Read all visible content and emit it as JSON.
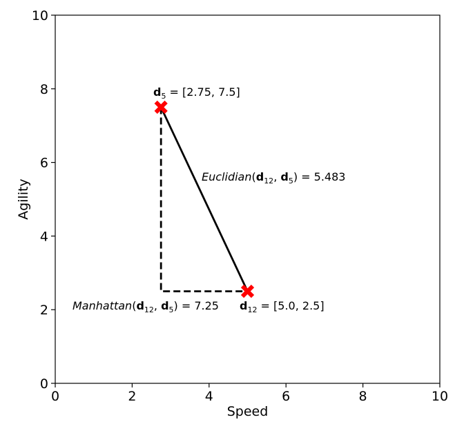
{
  "chart_data": {
    "type": "scatter",
    "xlabel": "Speed",
    "ylabel": "Agility",
    "xlim": [
      0,
      10
    ],
    "ylim": [
      0,
      10
    ],
    "xticks": [
      0,
      2,
      4,
      6,
      8,
      10
    ],
    "yticks": [
      0,
      2,
      4,
      6,
      8,
      10
    ],
    "grid": false,
    "points": [
      {
        "name": "d5",
        "x": 2.75,
        "y": 7.5,
        "color": "#ff0000",
        "marker": "X"
      },
      {
        "name": "d12",
        "x": 5.0,
        "y": 2.5,
        "color": "#ff0000",
        "marker": "X"
      }
    ],
    "lines": [
      {
        "style": "solid",
        "x": [
          2.75,
          5.0
        ],
        "y": [
          7.5,
          2.5
        ],
        "color": "#000000"
      },
      {
        "style": "dashed",
        "x": [
          2.75,
          2.75,
          5.0
        ],
        "y": [
          7.5,
          2.5,
          2.5
        ],
        "color": "#000000"
      }
    ],
    "annotations": [
      {
        "id": "label_d5",
        "text": "d5 = [2.75, 7.5]",
        "x": 2.75,
        "y": 7.5
      },
      {
        "id": "label_d12",
        "text": "d12 = [5.0, 2.5]",
        "x": 5.0,
        "y": 2.5
      },
      {
        "id": "euclidian",
        "text": "Euclidian(d12, d5) = 5.483"
      },
      {
        "id": "manhattan",
        "text": "Manhattan(d12, d5) = 7.25"
      }
    ]
  },
  "labels": {
    "d5_bold": "d",
    "d5_sub": "5",
    "d5_rest": " = [2.75, 7.5]",
    "d12_bold": "d",
    "d12_sub": "12",
    "d12_rest": " = [5.0, 2.5]",
    "euc_fn": "Euclidian",
    "euc_open": "(",
    "euc_d1": "d",
    "euc_s1": "12",
    "euc_sep": ", ",
    "euc_d2": "d",
    "euc_s2": "5",
    "euc_rest": ") = 5.483",
    "man_fn": "Manhattan",
    "man_open": "(",
    "man_d1": "d",
    "man_s1": "12",
    "man_sep": ", ",
    "man_d2": "d",
    "man_s2": "5",
    "man_rest": ") = 7.25"
  }
}
